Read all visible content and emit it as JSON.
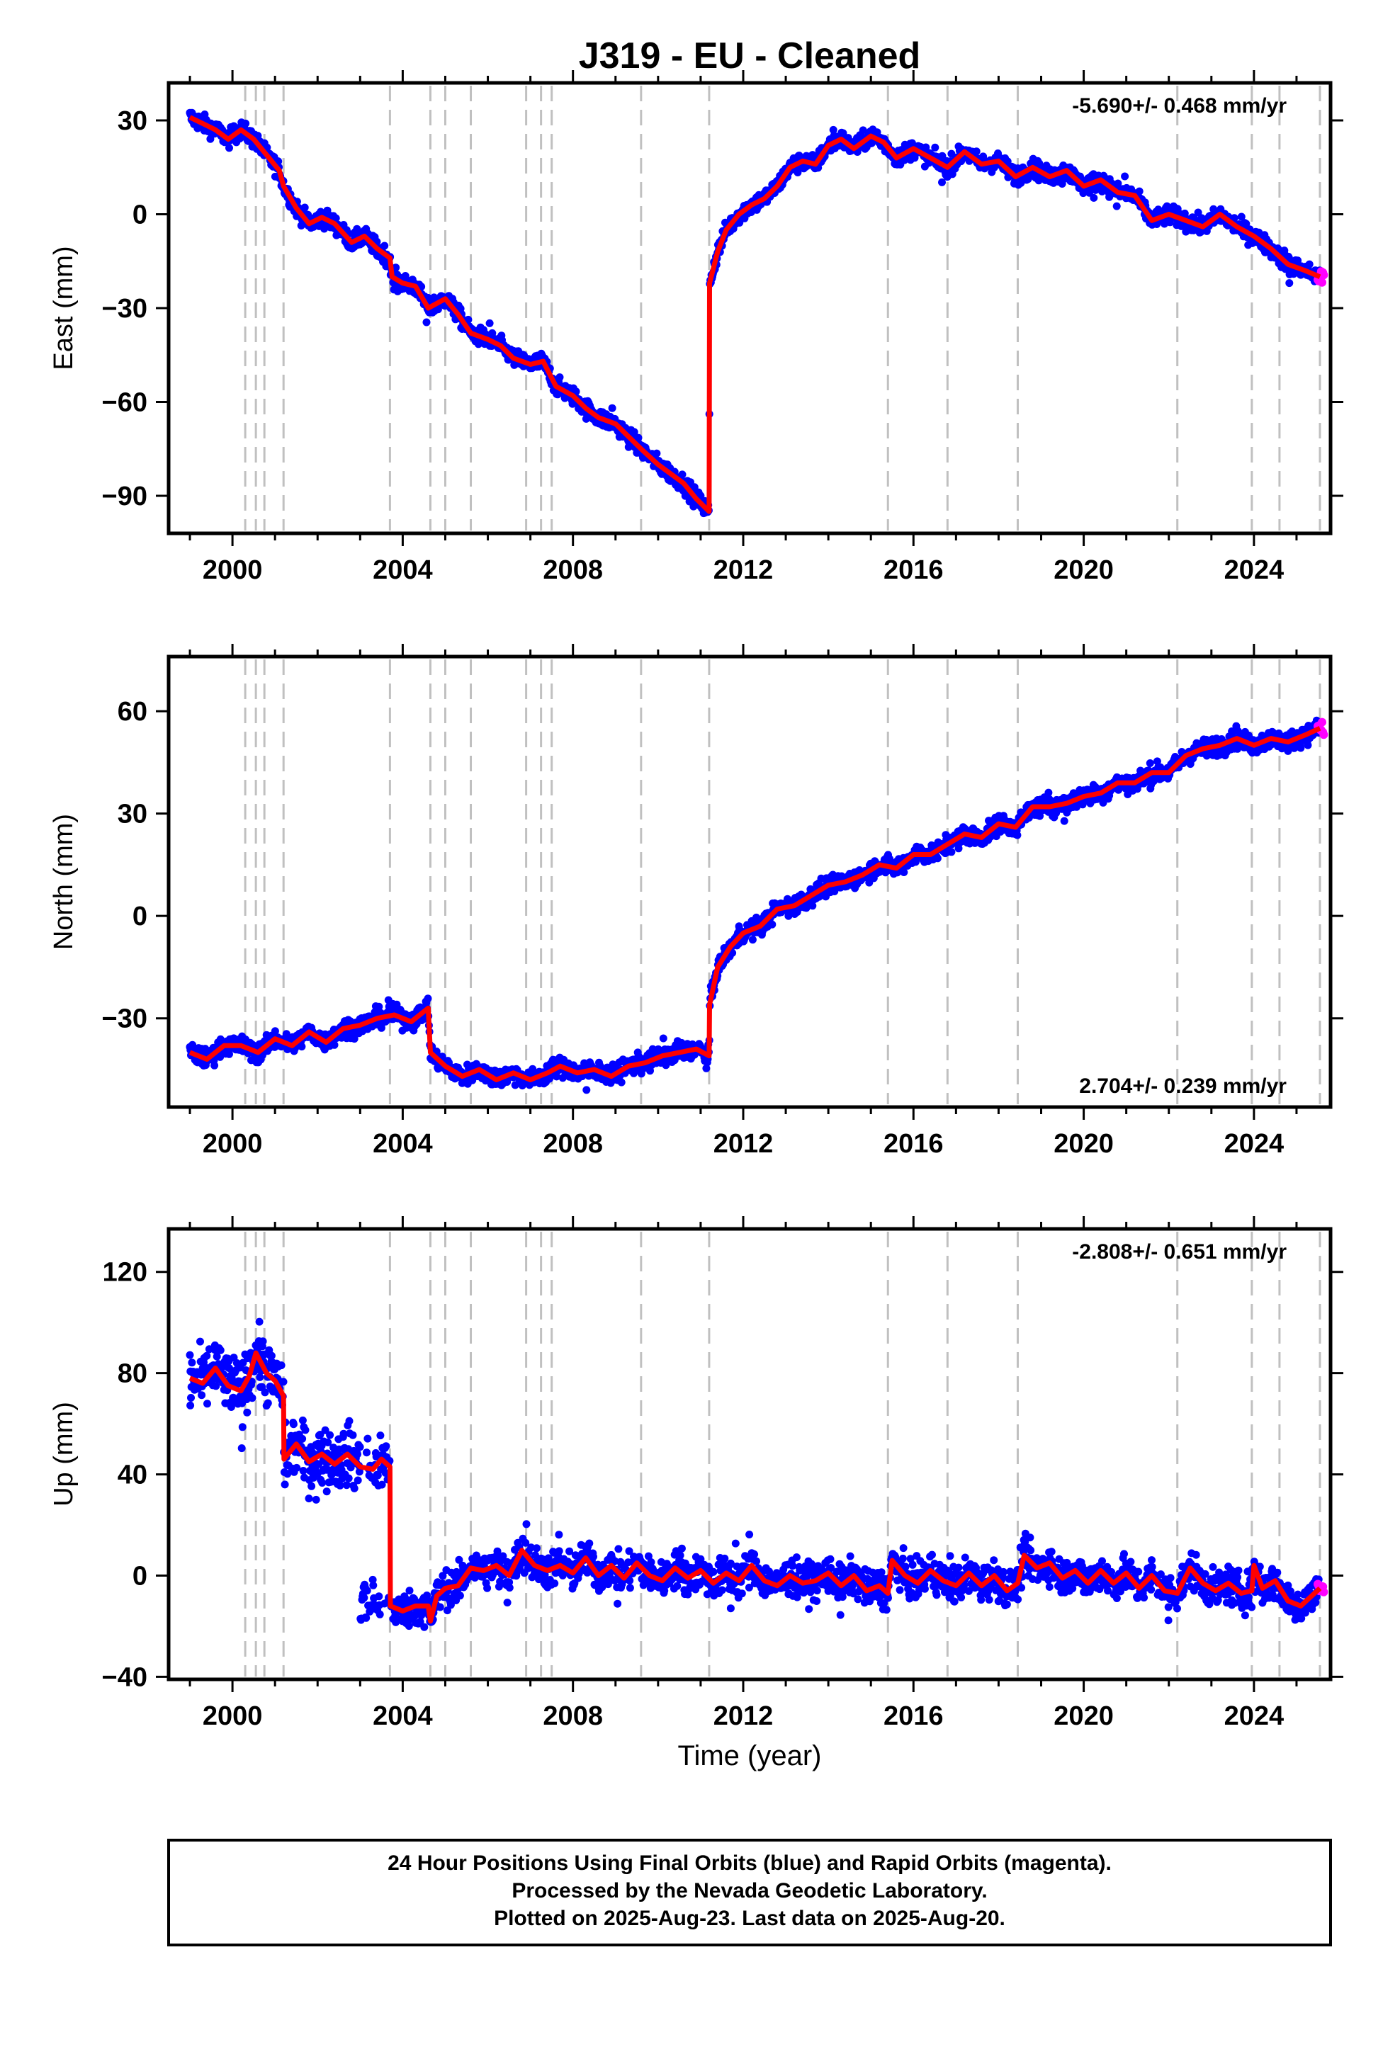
{
  "title": "J319  - EU - Cleaned",
  "xlabel": "Time (year)",
  "footer": {
    "line1": "24 Hour Positions Using Final Orbits (blue) and Rapid Orbits (magenta).",
    "line2": "Processed by the Nevada Geodetic Laboratory.",
    "line3": "Plotted on 2025-Aug-23. Last data on 2025-Aug-20."
  },
  "colors": {
    "final": "#0000ff",
    "rapid": "#ff00ff",
    "model": "#ff0000",
    "event": "#c0c0c0"
  },
  "chart_data": [
    {
      "type": "scatter",
      "ylabel": "East (mm)",
      "rate": "-5.690+/- 0.468 mm/yr",
      "xlim": [
        1998.5,
        2025.8
      ],
      "ylim": [
        -102,
        42
      ],
      "xticks": [
        2000,
        2004,
        2008,
        2012,
        2016,
        2020,
        2024
      ],
      "xtick_labels": [
        "2000",
        "2004",
        "2008",
        "2012",
        "2016",
        "2020",
        "2024"
      ],
      "yticks": [
        30,
        0,
        -30,
        -60,
        -90
      ],
      "ytick_labels": [
        "30",
        "0",
        "−30",
        "−60",
        "−90"
      ],
      "event_lines": [
        2000.3,
        2000.55,
        2000.75,
        2001.2,
        2003.7,
        2004.65,
        2005.0,
        2005.6,
        2006.9,
        2007.25,
        2007.5,
        2009.6,
        2011.2,
        2015.4,
        2016.8,
        2018.45,
        2022.2,
        2023.95,
        2024.6,
        2025.55
      ],
      "model_line": [
        [
          1999.0,
          31
        ],
        [
          1999.3,
          29
        ],
        [
          1999.6,
          27
        ],
        [
          1999.9,
          24
        ],
        [
          2000.2,
          27
        ],
        [
          2000.5,
          24
        ],
        [
          2000.8,
          19
        ],
        [
          2001.1,
          14
        ],
        [
          2001.2,
          9
        ],
        [
          2001.5,
          2
        ],
        [
          2001.8,
          -3
        ],
        [
          2002.1,
          -1
        ],
        [
          2002.4,
          -3
        ],
        [
          2002.8,
          -9
        ],
        [
          2003.1,
          -7
        ],
        [
          2003.4,
          -11
        ],
        [
          2003.7,
          -14
        ],
        [
          2003.75,
          -20
        ],
        [
          2004.0,
          -22
        ],
        [
          2004.3,
          -23
        ],
        [
          2004.6,
          -30
        ],
        [
          2005.0,
          -27
        ],
        [
          2005.3,
          -32
        ],
        [
          2005.6,
          -38
        ],
        [
          2006.0,
          -40
        ],
        [
          2006.3,
          -42
        ],
        [
          2006.6,
          -46
        ],
        [
          2007.0,
          -48
        ],
        [
          2007.3,
          -47
        ],
        [
          2007.6,
          -55
        ],
        [
          2008.0,
          -58
        ],
        [
          2008.3,
          -62
        ],
        [
          2008.6,
          -65
        ],
        [
          2009.0,
          -67
        ],
        [
          2009.3,
          -71
        ],
        [
          2009.6,
          -75
        ],
        [
          2010.0,
          -80
        ],
        [
          2010.3,
          -83
        ],
        [
          2010.6,
          -86
        ],
        [
          2010.9,
          -91
        ],
        [
          2011.2,
          -95
        ],
        [
          2011.21,
          -22
        ],
        [
          2011.4,
          -12
        ],
        [
          2011.6,
          -5
        ],
        [
          2011.9,
          0
        ],
        [
          2012.2,
          3
        ],
        [
          2012.5,
          5
        ],
        [
          2012.8,
          9
        ],
        [
          2013.1,
          15
        ],
        [
          2013.4,
          17
        ],
        [
          2013.7,
          16
        ],
        [
          2014.0,
          22
        ],
        [
          2014.3,
          24
        ],
        [
          2014.6,
          21
        ],
        [
          2015.0,
          25
        ],
        [
          2015.3,
          23
        ],
        [
          2015.6,
          18
        ],
        [
          2016.0,
          21
        ],
        [
          2016.4,
          18
        ],
        [
          2016.8,
          15
        ],
        [
          2017.2,
          20
        ],
        [
          2017.6,
          16
        ],
        [
          2018.0,
          17
        ],
        [
          2018.4,
          12
        ],
        [
          2018.8,
          15
        ],
        [
          2019.2,
          12
        ],
        [
          2019.6,
          14
        ],
        [
          2020.0,
          9
        ],
        [
          2020.4,
          11
        ],
        [
          2020.8,
          7
        ],
        [
          2021.2,
          6
        ],
        [
          2021.6,
          -2
        ],
        [
          2022.0,
          0
        ],
        [
          2022.4,
          -2
        ],
        [
          2022.8,
          -4
        ],
        [
          2023.2,
          0
        ],
        [
          2023.6,
          -4
        ],
        [
          2024.0,
          -7
        ],
        [
          2024.4,
          -11
        ],
        [
          2024.8,
          -16
        ],
        [
          2025.2,
          -18
        ],
        [
          2025.55,
          -20
        ]
      ]
    },
    {
      "type": "scatter",
      "ylabel": "North (mm)",
      "rate": "2.704+/- 0.239 mm/yr",
      "xlim": [
        1998.5,
        2025.8
      ],
      "ylim": [
        -56,
        76
      ],
      "xticks": [
        2000,
        2004,
        2008,
        2012,
        2016,
        2020,
        2024
      ],
      "xtick_labels": [
        "2000",
        "2004",
        "2008",
        "2012",
        "2016",
        "2020",
        "2024"
      ],
      "yticks": [
        60,
        30,
        0,
        -30
      ],
      "ytick_labels": [
        "60",
        "30",
        "0",
        "−30"
      ],
      "event_lines": [
        2000.3,
        2000.55,
        2000.75,
        2001.2,
        2003.7,
        2004.65,
        2005.0,
        2005.6,
        2006.9,
        2007.25,
        2007.5,
        2009.6,
        2011.2,
        2015.4,
        2016.8,
        2018.45,
        2022.2,
        2023.95,
        2024.6,
        2025.55
      ],
      "model_line": [
        [
          1999.0,
          -40
        ],
        [
          1999.4,
          -42
        ],
        [
          1999.8,
          -38
        ],
        [
          2000.2,
          -38
        ],
        [
          2000.6,
          -40
        ],
        [
          2001.0,
          -36
        ],
        [
          2001.4,
          -38
        ],
        [
          2001.8,
          -34
        ],
        [
          2002.2,
          -37
        ],
        [
          2002.6,
          -33
        ],
        [
          2003.0,
          -32
        ],
        [
          2003.4,
          -30
        ],
        [
          2003.8,
          -29
        ],
        [
          2004.2,
          -31
        ],
        [
          2004.6,
          -27
        ],
        [
          2004.65,
          -40
        ],
        [
          2005.0,
          -44
        ],
        [
          2005.4,
          -47
        ],
        [
          2005.8,
          -45
        ],
        [
          2006.2,
          -48
        ],
        [
          2006.6,
          -46
        ],
        [
          2007.0,
          -48
        ],
        [
          2007.4,
          -46
        ],
        [
          2007.7,
          -44
        ],
        [
          2008.1,
          -46
        ],
        [
          2008.5,
          -45
        ],
        [
          2008.9,
          -47
        ],
        [
          2009.3,
          -44
        ],
        [
          2009.7,
          -43
        ],
        [
          2010.1,
          -41
        ],
        [
          2010.5,
          -40
        ],
        [
          2010.9,
          -39
        ],
        [
          2011.2,
          -41
        ],
        [
          2011.21,
          -26
        ],
        [
          2011.4,
          -15
        ],
        [
          2011.7,
          -9
        ],
        [
          2012.0,
          -5
        ],
        [
          2012.4,
          -3
        ],
        [
          2012.8,
          2
        ],
        [
          2013.2,
          3
        ],
        [
          2013.6,
          6
        ],
        [
          2014.0,
          9
        ],
        [
          2014.4,
          10
        ],
        [
          2014.8,
          12
        ],
        [
          2015.2,
          15
        ],
        [
          2015.6,
          14
        ],
        [
          2016.0,
          18
        ],
        [
          2016.4,
          18
        ],
        [
          2016.8,
          21
        ],
        [
          2017.2,
          24
        ],
        [
          2017.6,
          23
        ],
        [
          2018.0,
          27
        ],
        [
          2018.4,
          26
        ],
        [
          2018.8,
          32
        ],
        [
          2019.2,
          32
        ],
        [
          2019.6,
          33
        ],
        [
          2020.0,
          35
        ],
        [
          2020.4,
          36
        ],
        [
          2020.8,
          39
        ],
        [
          2021.2,
          39
        ],
        [
          2021.6,
          42
        ],
        [
          2022.0,
          42
        ],
        [
          2022.4,
          47
        ],
        [
          2022.8,
          49
        ],
        [
          2023.2,
          50
        ],
        [
          2023.6,
          52
        ],
        [
          2024.0,
          50
        ],
        [
          2024.4,
          52
        ],
        [
          2024.8,
          51
        ],
        [
          2025.2,
          53
        ],
        [
          2025.55,
          55
        ]
      ]
    },
    {
      "type": "scatter",
      "ylabel": "Up (mm)",
      "rate": "-2.808+/- 0.651 mm/yr",
      "xlim": [
        1998.5,
        2025.8
      ],
      "ylim": [
        -41,
        137
      ],
      "xticks": [
        2000,
        2004,
        2008,
        2012,
        2016,
        2020,
        2024
      ],
      "xtick_labels": [
        "2000",
        "2004",
        "2008",
        "2012",
        "2016",
        "2020",
        "2024"
      ],
      "yticks": [
        120,
        80,
        40,
        0,
        -40
      ],
      "ytick_labels": [
        "120",
        "80",
        "40",
        "0",
        "−40"
      ],
      "event_lines": [
        2000.3,
        2000.55,
        2000.75,
        2001.2,
        2003.7,
        2004.65,
        2005.0,
        2005.6,
        2006.9,
        2007.25,
        2007.5,
        2009.6,
        2011.2,
        2015.4,
        2016.8,
        2018.45,
        2022.2,
        2023.95,
        2024.6,
        2025.55
      ],
      "model_line": [
        [
          1999.0,
          78
        ],
        [
          1999.3,
          76
        ],
        [
          1999.6,
          82
        ],
        [
          1999.9,
          75
        ],
        [
          2000.2,
          73
        ],
        [
          2000.4,
          79
        ],
        [
          2000.55,
          88
        ],
        [
          2000.8,
          80
        ],
        [
          2001.0,
          77
        ],
        [
          2001.2,
          71
        ],
        [
          2001.21,
          46
        ],
        [
          2001.5,
          52
        ],
        [
          2001.8,
          45
        ],
        [
          2002.1,
          48
        ],
        [
          2002.4,
          44
        ],
        [
          2002.7,
          48
        ],
        [
          2003.0,
          43
        ],
        [
          2003.3,
          42
        ],
        [
          2003.5,
          46
        ],
        [
          2003.7,
          43
        ],
        [
          2003.71,
          -12
        ],
        [
          2004.0,
          -14
        ],
        [
          2004.3,
          -12
        ],
        [
          2004.6,
          -12
        ],
        [
          2004.65,
          -18
        ],
        [
          2004.8,
          -8
        ],
        [
          2005.0,
          -5
        ],
        [
          2005.3,
          -4
        ],
        [
          2005.6,
          3
        ],
        [
          2005.9,
          2
        ],
        [
          2006.2,
          4
        ],
        [
          2006.5,
          0
        ],
        [
          2006.8,
          10
        ],
        [
          2007.1,
          4
        ],
        [
          2007.4,
          2
        ],
        [
          2007.7,
          4
        ],
        [
          2008.0,
          1
        ],
        [
          2008.3,
          7
        ],
        [
          2008.6,
          0
        ],
        [
          2008.9,
          4
        ],
        [
          2009.2,
          -1
        ],
        [
          2009.5,
          5
        ],
        [
          2009.8,
          0
        ],
        [
          2010.1,
          -2
        ],
        [
          2010.4,
          3
        ],
        [
          2010.7,
          -1
        ],
        [
          2011.0,
          2
        ],
        [
          2011.3,
          -3
        ],
        [
          2011.6,
          1
        ],
        [
          2011.9,
          -2
        ],
        [
          2012.2,
          4
        ],
        [
          2012.5,
          -2
        ],
        [
          2012.8,
          -4
        ],
        [
          2013.1,
          0
        ],
        [
          2013.4,
          -3
        ],
        [
          2013.7,
          -2
        ],
        [
          2014.0,
          1
        ],
        [
          2014.3,
          -4
        ],
        [
          2014.6,
          0
        ],
        [
          2014.9,
          -6
        ],
        [
          2015.2,
          -4
        ],
        [
          2015.4,
          -7
        ],
        [
          2015.5,
          6
        ],
        [
          2015.8,
          0
        ],
        [
          2016.1,
          -3
        ],
        [
          2016.4,
          2
        ],
        [
          2016.7,
          -2
        ],
        [
          2017.0,
          -4
        ],
        [
          2017.3,
          1
        ],
        [
          2017.6,
          -4
        ],
        [
          2017.9,
          0
        ],
        [
          2018.2,
          -6
        ],
        [
          2018.45,
          -3
        ],
        [
          2018.6,
          8
        ],
        [
          2018.9,
          3
        ],
        [
          2019.2,
          5
        ],
        [
          2019.5,
          -1
        ],
        [
          2019.8,
          2
        ],
        [
          2020.1,
          -3
        ],
        [
          2020.4,
          2
        ],
        [
          2020.7,
          -3
        ],
        [
          2021.0,
          1
        ],
        [
          2021.3,
          -5
        ],
        [
          2021.6,
          0
        ],
        [
          2021.9,
          -6
        ],
        [
          2022.2,
          -7
        ],
        [
          2022.5,
          3
        ],
        [
          2022.8,
          -3
        ],
        [
          2023.1,
          -6
        ],
        [
          2023.4,
          -3
        ],
        [
          2023.7,
          -7
        ],
        [
          2023.95,
          -6
        ],
        [
          2024.0,
          4
        ],
        [
          2024.2,
          -5
        ],
        [
          2024.5,
          -2
        ],
        [
          2024.8,
          -10
        ],
        [
          2025.1,
          -12
        ],
        [
          2025.55,
          -5
        ]
      ]
    }
  ]
}
